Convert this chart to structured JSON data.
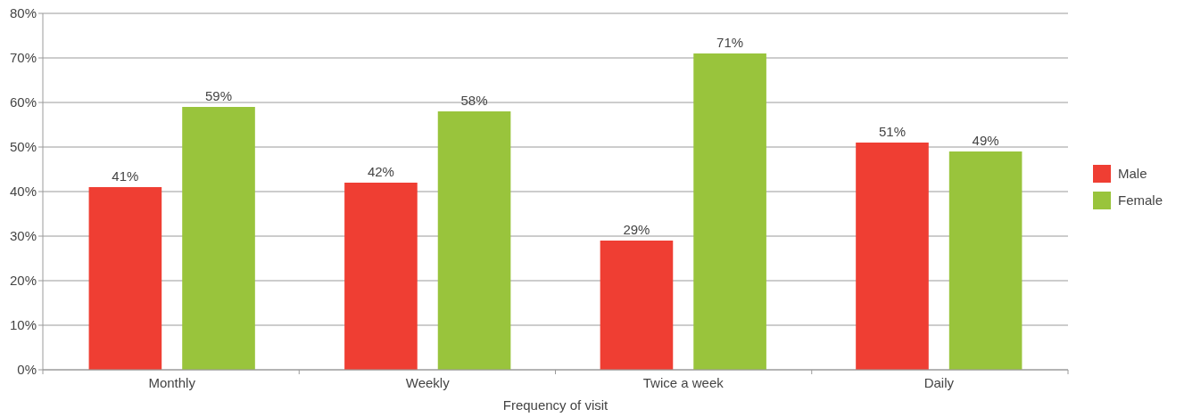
{
  "chart_data": {
    "type": "bar",
    "xlabel": "Frequency of visit",
    "categories": [
      "Monthly",
      "Weekly",
      "Twice a week",
      "Daily"
    ],
    "series": [
      {
        "name": "Male",
        "color": "#ef3e33",
        "values": [
          41,
          42,
          29,
          51
        ],
        "value_labels": [
          "41%",
          "42%",
          "29%",
          "51%"
        ]
      },
      {
        "name": "Female",
        "color": "#99c43c",
        "values": [
          59,
          58,
          71,
          49
        ],
        "value_labels": [
          "59%",
          "58%",
          "71%",
          "49%"
        ]
      }
    ],
    "ylim": [
      0,
      80
    ],
    "yticks": [
      {
        "value": 0,
        "label": "0%"
      },
      {
        "value": 10,
        "label": "10%"
      },
      {
        "value": 20,
        "label": "20%"
      },
      {
        "value": 30,
        "label": "30%"
      },
      {
        "value": 40,
        "label": "40%"
      },
      {
        "value": 50,
        "label": "50%"
      },
      {
        "value": 60,
        "label": "60%"
      },
      {
        "value": 70,
        "label": "70%"
      },
      {
        "value": 80,
        "label": "80%"
      }
    ],
    "grid": "y",
    "legend": "right"
  }
}
